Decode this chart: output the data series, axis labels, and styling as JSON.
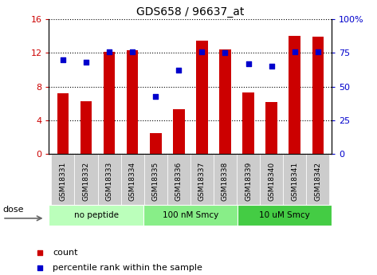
{
  "title": "GDS658 / 96637_at",
  "categories": [
    "GSM18331",
    "GSM18332",
    "GSM18333",
    "GSM18334",
    "GSM18335",
    "GSM18336",
    "GSM18337",
    "GSM18338",
    "GSM18339",
    "GSM18340",
    "GSM18341",
    "GSM18342"
  ],
  "bar_values": [
    7.2,
    6.3,
    12.1,
    12.3,
    2.5,
    5.3,
    13.5,
    12.4,
    7.3,
    6.2,
    14.0,
    13.9
  ],
  "dot_values": [
    70,
    68,
    76,
    76,
    43,
    62,
    76,
    75,
    67,
    65,
    76,
    76
  ],
  "bar_color": "#cc0000",
  "dot_color": "#0000cc",
  "groups": [
    {
      "label": "no peptide",
      "start": 0,
      "end": 4,
      "color": "#bbffbb"
    },
    {
      "label": "100 nM Smcy",
      "start": 4,
      "end": 8,
      "color": "#88ee88"
    },
    {
      "label": "10 uM Smcy",
      "start": 8,
      "end": 12,
      "color": "#44cc44"
    }
  ],
  "dose_label": "dose",
  "ylim_left": [
    0,
    16
  ],
  "ylim_right": [
    0,
    100
  ],
  "yticks_left": [
    0,
    4,
    8,
    12,
    16
  ],
  "yticks_right": [
    0,
    25,
    50,
    75,
    100
  ],
  "yticklabels_right": [
    "0",
    "25",
    "50",
    "75",
    "100%"
  ],
  "bar_width": 0.5,
  "legend_count_label": "count",
  "legend_pct_label": "percentile rank within the sample",
  "tick_bg": "#cccccc",
  "bg_color": "#ffffff"
}
